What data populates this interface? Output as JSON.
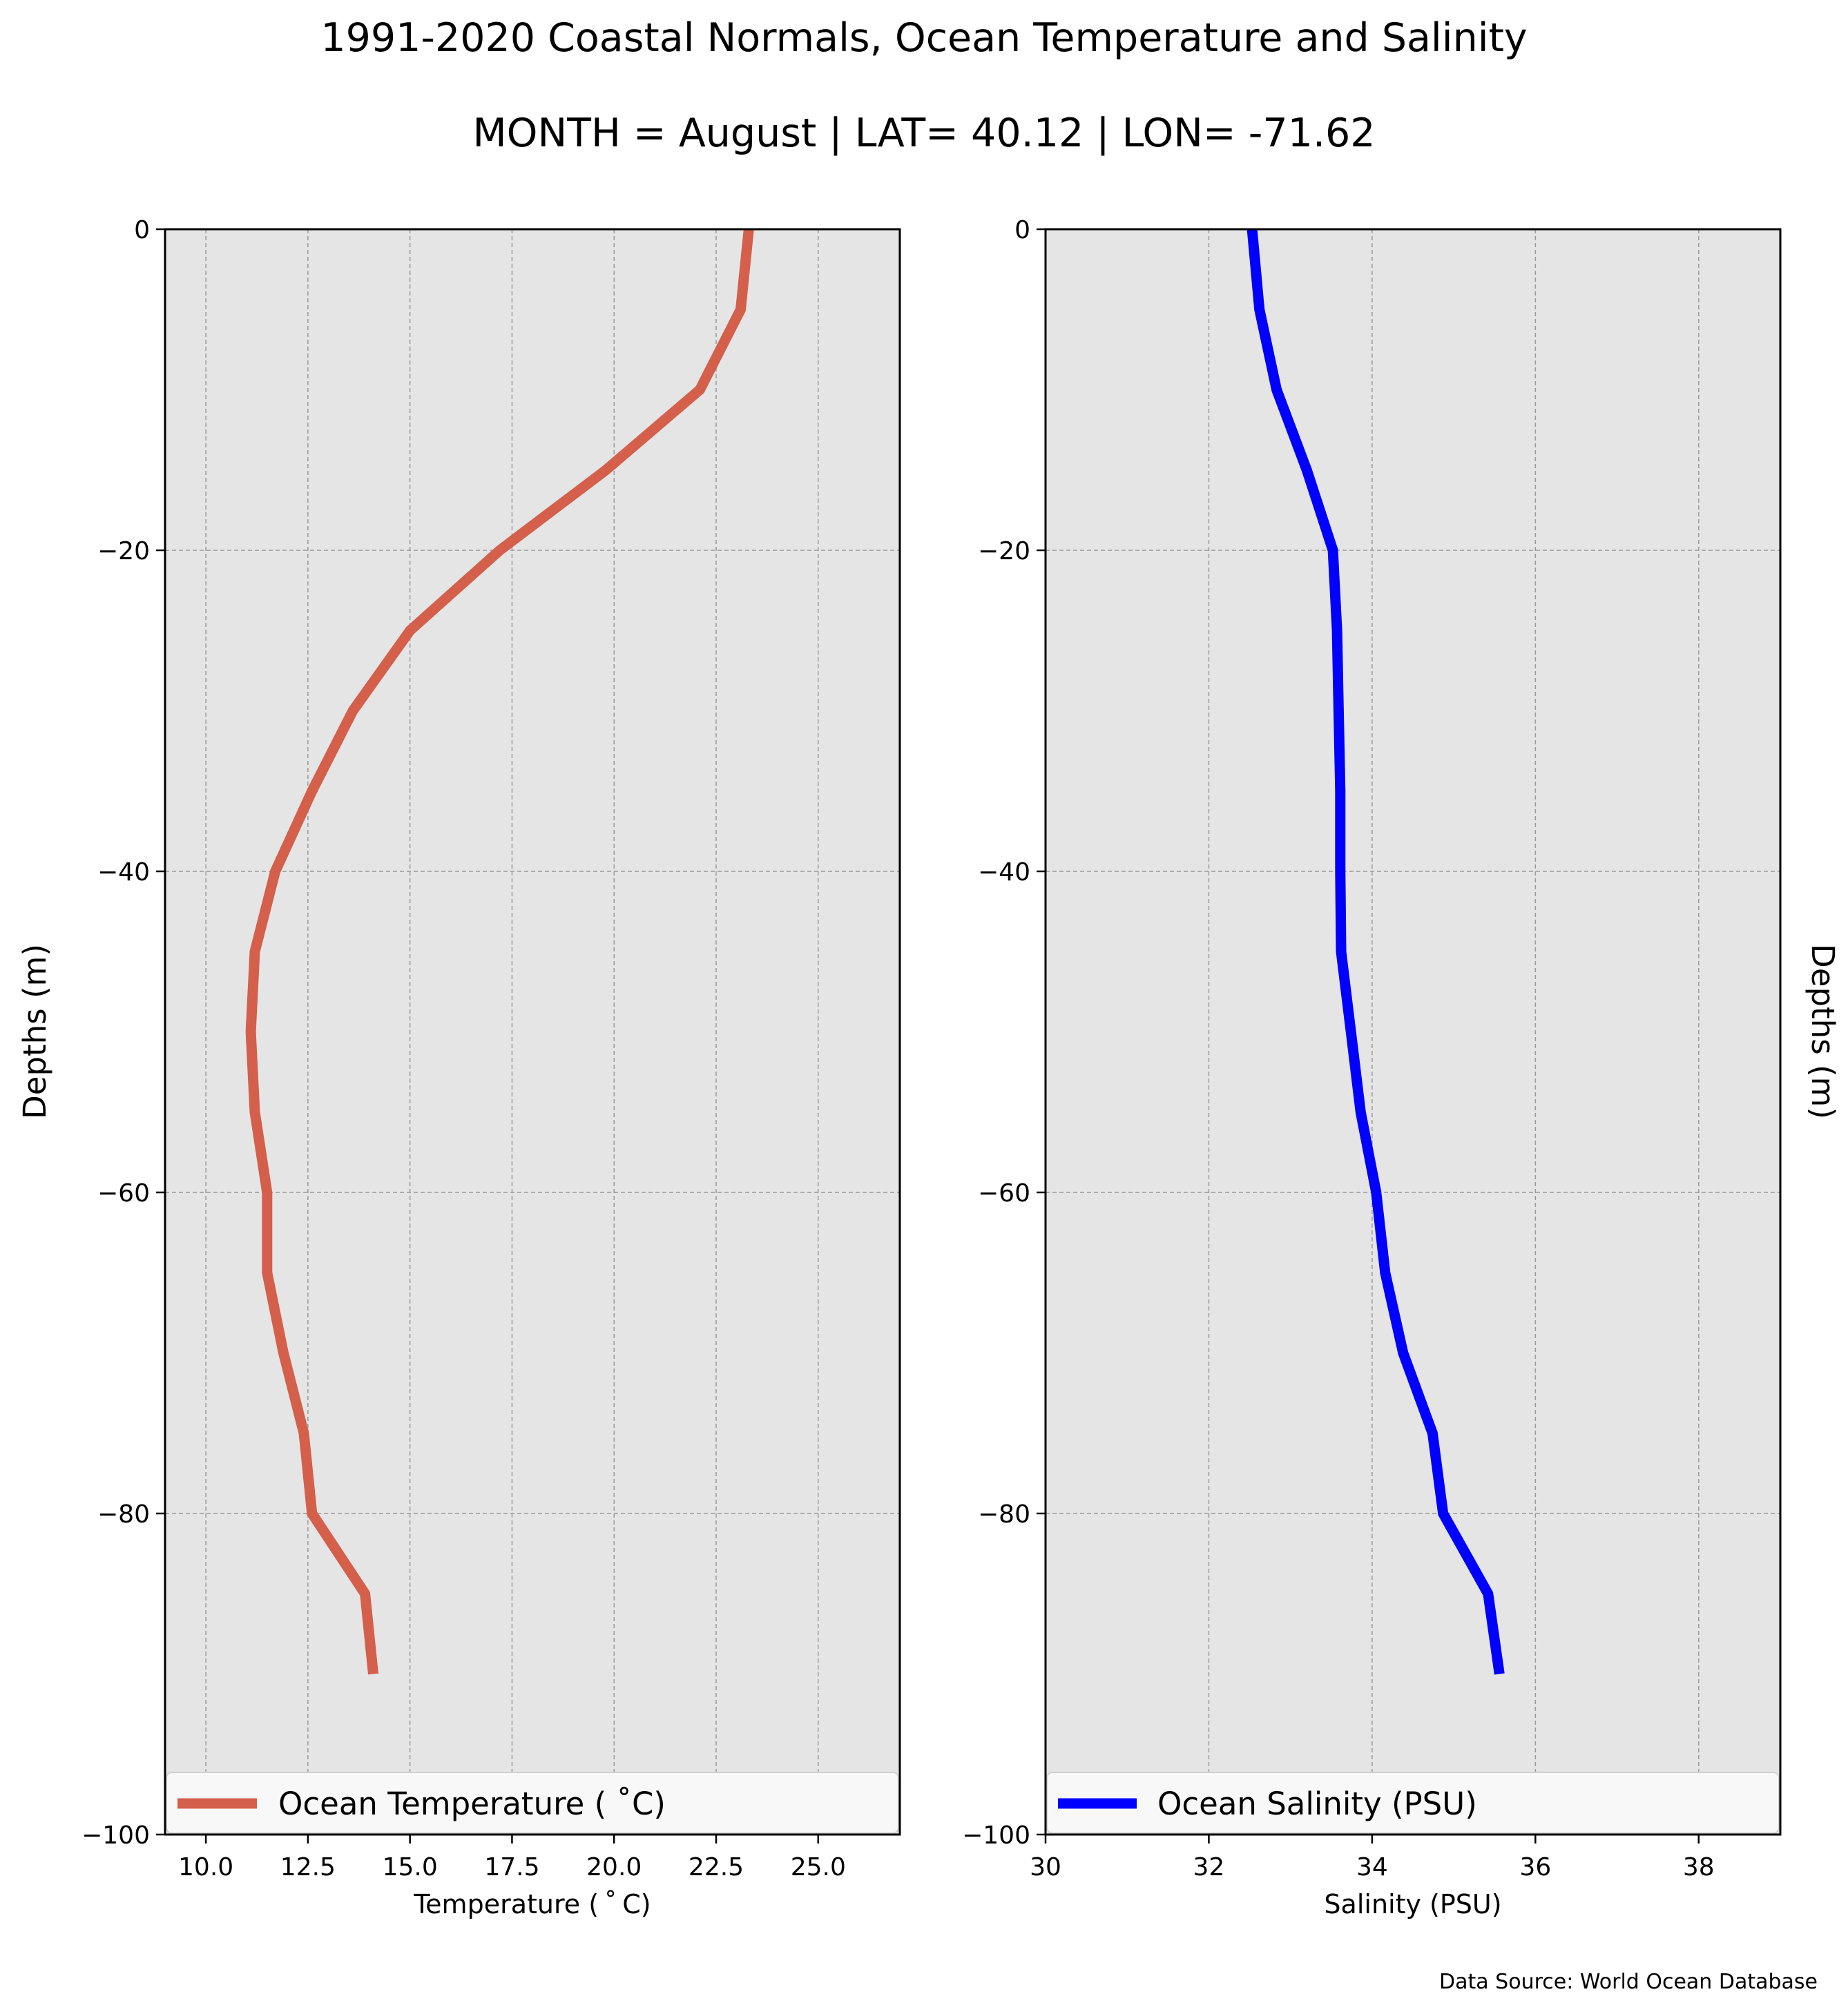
{
  "title": "1991-2020 Coastal Normals, Ocean Temperature and Salinity",
  "subtitle": "MONTH = August | LAT= 40.12 | LON= -71.62",
  "source_note": "Data Source: World Ocean Database",
  "colors": {
    "plot_background": "#e6e5e6",
    "grid": "#9a9a9a",
    "temperature_line": "#d45f4b",
    "salinity_line": "#0000ff"
  },
  "chart_data": [
    {
      "type": "line",
      "xlabel": "Temperature ($^\\circ$C)",
      "xlabel_display": "Temperature ( ˚ C)",
      "ylabel": "Depths (m)",
      "xlim": [
        9.0,
        27.0
      ],
      "ylim": [
        -100,
        0
      ],
      "xticks": [
        10.0,
        12.5,
        15.0,
        17.5,
        20.0,
        22.5,
        25.0
      ],
      "xtick_labels": [
        "10.0",
        "12.5",
        "15.0",
        "17.5",
        "20.0",
        "22.5",
        "25.0"
      ],
      "yticks": [
        0,
        -20,
        -40,
        -60,
        -80,
        -100
      ],
      "ytick_labels": [
        "0",
        "−20",
        "−40",
        "−60",
        "−80",
        "−100"
      ],
      "grid": true,
      "legend": "lower-center, full width",
      "ylabel_side": "left",
      "series": [
        {
          "name": "Ocean Temperature ( ˚C)",
          "color": "#d45f4b",
          "x": [
            23.3,
            23.1,
            22.1,
            19.8,
            17.2,
            15.0,
            13.6,
            12.6,
            11.7,
            11.2,
            11.1,
            11.2,
            11.5,
            11.5,
            11.9,
            12.4,
            12.6,
            13.9,
            14.1
          ],
          "y": [
            0,
            -5,
            -10,
            -15,
            -20,
            -25,
            -30,
            -35,
            -40,
            -45,
            -50,
            -55,
            -60,
            -65,
            -70,
            -75,
            -80,
            -85,
            -90
          ]
        }
      ]
    },
    {
      "type": "line",
      "xlabel": "Salinity (PSU)",
      "ylabel": "Depths (m)",
      "xlim": [
        30,
        39
      ],
      "ylim": [
        -100,
        0
      ],
      "xticks": [
        30,
        32,
        34,
        36,
        38
      ],
      "xtick_labels": [
        "30",
        "32",
        "34",
        "36",
        "38"
      ],
      "yticks": [
        0,
        -20,
        -40,
        -60,
        -80,
        -100
      ],
      "ytick_labels": [
        "0",
        "−20",
        "−40",
        "−60",
        "−80",
        "−100"
      ],
      "grid": true,
      "legend": "lower-center, full width",
      "ylabel_side": "right",
      "series": [
        {
          "name": "Ocean Salinity (PSU)",
          "color": "#0000ff",
          "x": [
            32.53,
            32.62,
            32.83,
            33.2,
            33.52,
            33.57,
            33.59,
            33.61,
            33.61,
            33.62,
            33.74,
            33.86,
            34.05,
            34.16,
            34.38,
            34.74,
            34.87,
            35.42,
            35.56
          ],
          "y": [
            0,
            -5,
            -10,
            -15,
            -20,
            -25,
            -30,
            -35,
            -40,
            -45,
            -50,
            -55,
            -60,
            -65,
            -70,
            -75,
            -80,
            -85,
            -90
          ]
        }
      ]
    }
  ]
}
